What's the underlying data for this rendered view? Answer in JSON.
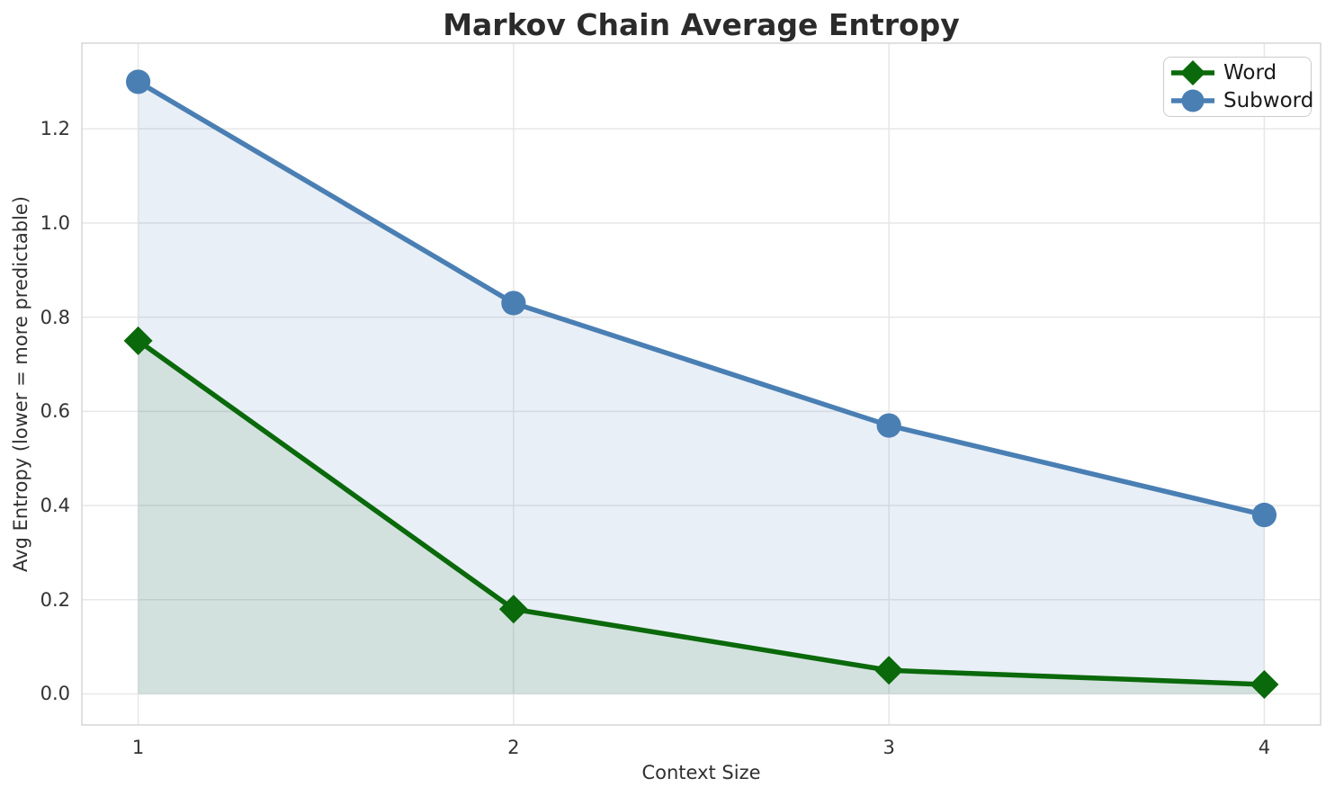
{
  "chart_data": {
    "type": "line",
    "title": "Markov Chain Average Entropy",
    "xlabel": "Context Size",
    "ylabel": "Avg Entropy (lower = more predictable)",
    "x": [
      1,
      2,
      3,
      4
    ],
    "series": [
      {
        "name": "Word",
        "values": [
          0.75,
          0.18,
          0.05,
          0.02
        ],
        "color": "#0a690a",
        "marker": "diamond",
        "fill_alpha": 0.1
      },
      {
        "name": "Subword",
        "values": [
          1.3,
          0.83,
          0.57,
          0.38
        ],
        "color": "#4a7fb4",
        "marker": "circle",
        "fill_alpha": 0.12
      }
    ],
    "fill_to_zero": true,
    "xlim": [
      0.85,
      4.15
    ],
    "ylim": [
      -0.066,
      1.382
    ],
    "xticks": [
      {
        "v": 1,
        "label": "1"
      },
      {
        "v": 2,
        "label": "2"
      },
      {
        "v": 3,
        "label": "3"
      },
      {
        "v": 4,
        "label": "4"
      }
    ],
    "yticks": [
      {
        "v": 0.0,
        "label": "0.0"
      },
      {
        "v": 0.2,
        "label": "0.2"
      },
      {
        "v": 0.4,
        "label": "0.4"
      },
      {
        "v": 0.6,
        "label": "0.6"
      },
      {
        "v": 0.8,
        "label": "0.8"
      },
      {
        "v": 1.0,
        "label": "1.0"
      },
      {
        "v": 1.2,
        "label": "1.2"
      }
    ],
    "grid": true,
    "grid_color": "#e7e7e7",
    "spine_color": "#d5d5d5",
    "text_color": "#2b2b2b",
    "legend_position": "upper right"
  }
}
